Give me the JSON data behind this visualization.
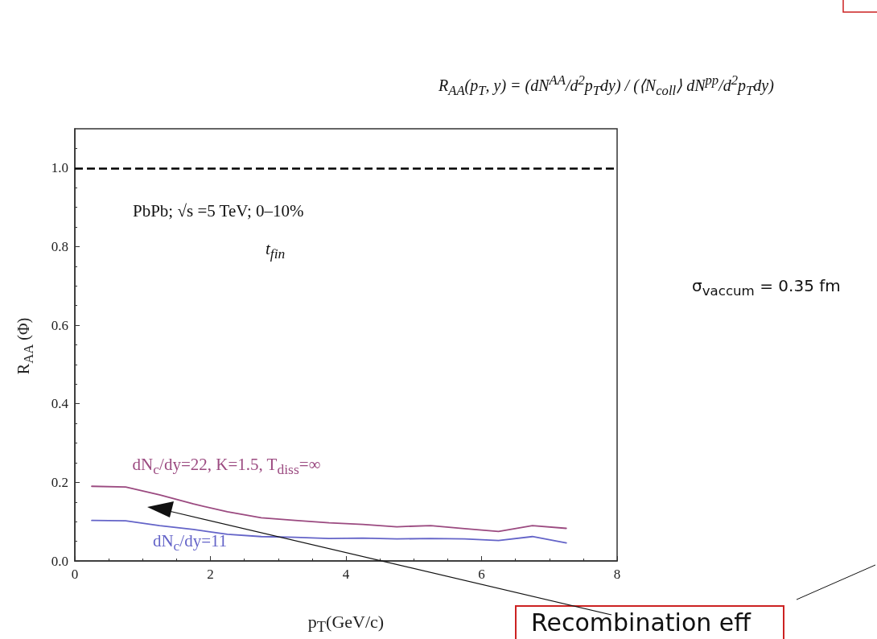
{
  "chart_data": {
    "type": "line",
    "xlabel": "p$_{T}$(GeV/c)",
    "ylabel": "R$_{AA}$ (Φ)",
    "x": [
      0.25,
      0.75,
      1.25,
      1.75,
      2.25,
      2.75,
      3.25,
      3.75,
      4.25,
      4.75,
      5.25,
      5.75,
      6.25,
      6.75,
      7.25
    ],
    "series": [
      {
        "name": "dN$_{c}$/dy=22, K=1.5, T$_{diss}$=∞",
        "color": "#9b4a80",
        "values": [
          0.19,
          0.188,
          0.168,
          0.145,
          0.125,
          0.11,
          0.103,
          0.097,
          0.093,
          0.087,
          0.09,
          0.082,
          0.075,
          0.09,
          0.083
        ]
      },
      {
        "name": "dN$_{c}$/dy=11",
        "color": "#6464c8",
        "values": [
          0.103,
          0.102,
          0.09,
          0.08,
          0.068,
          0.062,
          0.06,
          0.057,
          0.058,
          0.056,
          0.057,
          0.056,
          0.052,
          0.062,
          0.046
        ]
      }
    ],
    "xlim": [
      0,
      8
    ],
    "xticks": [
      0,
      2,
      4,
      6,
      8
    ],
    "ylim": [
      0,
      1.1
    ],
    "yticks": [
      {
        "value": 0,
        "label": "0.0"
      },
      0.2,
      0.4,
      0.6,
      0.8,
      {
        "value": 1,
        "label": "1.0"
      }
    ],
    "ref_lines": [
      {
        "axis": "y",
        "value": 1,
        "color": "#000000",
        "line_style": "dashed"
      }
    ],
    "annotations": [
      "R$_{AA}$(p$_{T}$, y) = (dN$^{AA}$/d$^{2}$p$_{T}$dy) / (⟨N$_{coll}$⟩ dN$^{pp}$/d$^{2}$p$_{T}$dy)",
      "PbPb; √s =5 TeV; 0–10%",
      "t$_{fin}$",
      "σ$_{vaccum}$ = 0.35 fm",
      "Recombination eff"
    ],
    "grid": false,
    "legend": false,
    "marker": "none",
    "line_style": "solid"
  }
}
